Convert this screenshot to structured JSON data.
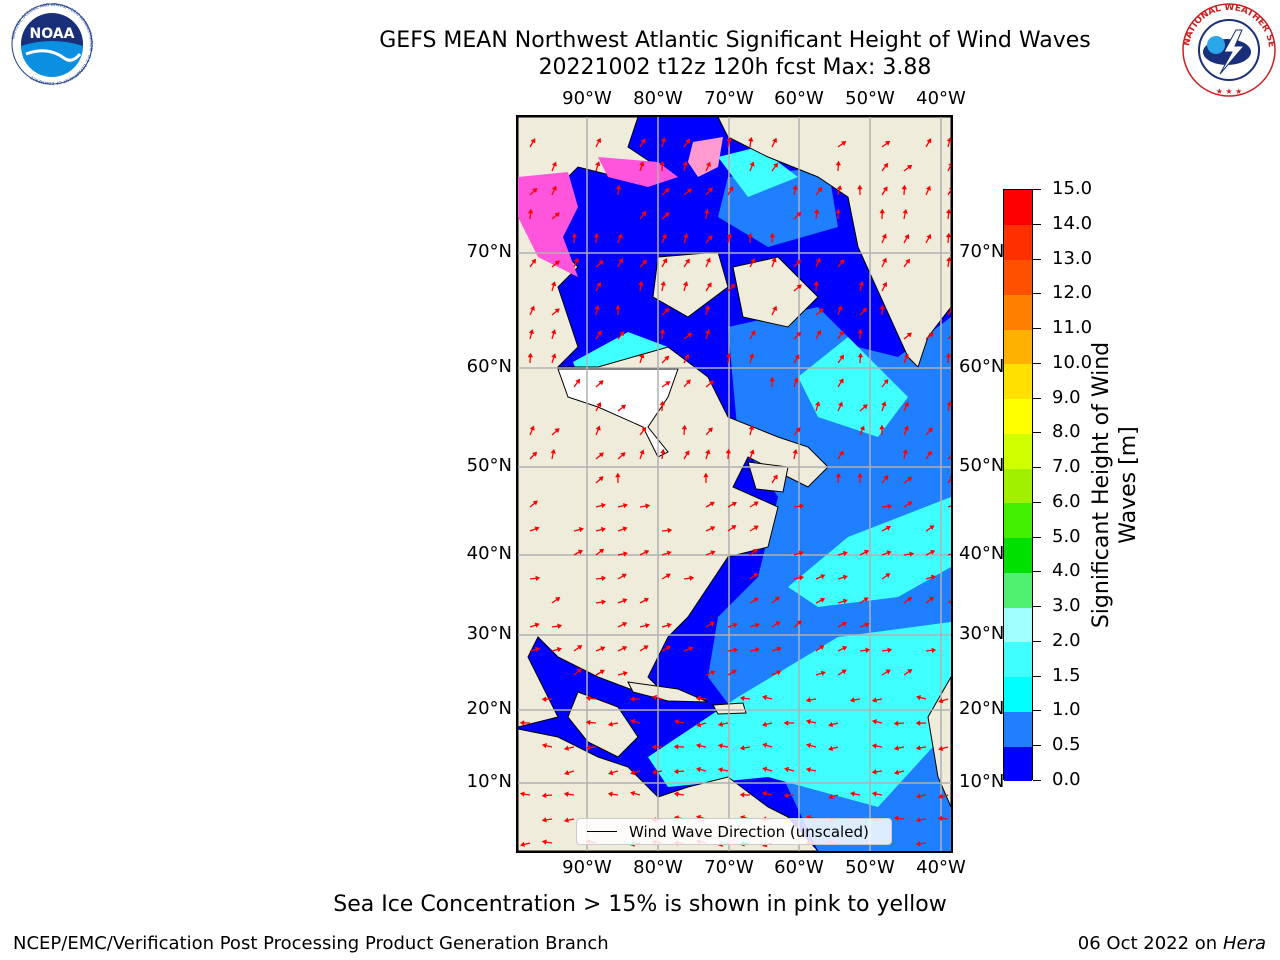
{
  "title_line1": "GEFS MEAN Northwest Atlantic Significant Height of Wind Waves",
  "title_line2": "20221002 t12z 120h fcst   Max: 3.88",
  "lon_labels": [
    "90°W",
    "80°W",
    "70°W",
    "60°W",
    "50°W",
    "40°W"
  ],
  "lat_labels": [
    "70°N",
    "60°N",
    "50°N",
    "40°N",
    "30°N",
    "20°N",
    "10°N"
  ],
  "colorbar": {
    "title": "Significant Height of Wind Waves [m]",
    "ticks": [
      "0.0",
      "0.5",
      "1.0",
      "1.5",
      "2.0",
      "3.0",
      "4.0",
      "5.0",
      "6.0",
      "7.0",
      "8.0",
      "9.0",
      "10.0",
      "11.0",
      "12.0",
      "13.0",
      "14.0",
      "15.0"
    ],
    "colors": [
      "#0000ff",
      "#1f7fff",
      "#00ffff",
      "#40ffff",
      "#a0ffff",
      "#50f070",
      "#00e000",
      "#40f000",
      "#a0f000",
      "#d0ff00",
      "#ffff00",
      "#ffe000",
      "#ffb000",
      "#ff8000",
      "#ff5000",
      "#ff3000",
      "#ff0000"
    ]
  },
  "colors": {
    "land": "#efecdc",
    "ocean_low": "#0000ff",
    "ocean_mid": "#1f7fff",
    "ocean_high": "#40ffff",
    "ice": "#ff55dd",
    "arrow": "#ff0000",
    "grid": "#b0b0b0"
  },
  "legend_text": "Wind Wave Direction (unscaled)",
  "note": "Sea Ice Concentration > 15% is shown in pink to yellow",
  "footer_left": "NCEP/EMC/Verification Post Processing Product Generation Branch",
  "footer_date": "06 Oct 2022 on",
  "footer_machine": "Hera",
  "logos": {
    "noaa_text": "NOAA",
    "noaa_ring": "NATIONAL OCEANIC AND ATMOSPHERIC ADMINISTRATION · U.S. DEPARTMENT OF COMMERCE",
    "nws_ring": "NATIONAL WEATHER SERVICE"
  }
}
